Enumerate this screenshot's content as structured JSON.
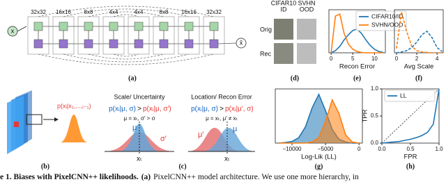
{
  "diagram_a": {
    "input": "x",
    "output": "x̂",
    "levels": [
      "32x32",
      "16x16",
      "8x8",
      "4x4",
      "4x4",
      "8x8",
      "16x16",
      "32x32"
    ],
    "label": "(a)"
  },
  "panel_d": {
    "columns": [
      [
        "CIFAR10",
        "ID"
      ],
      [
        "SVHN",
        "OOD"
      ]
    ],
    "rows": [
      "Orig",
      "Rec"
    ],
    "label": "(d)"
  },
  "panel_b": {
    "formula": "p(xᵢ|x₁,...,ᵢ₋₁)",
    "label": "(b)"
  },
  "panel_c": {
    "left": {
      "title": "Scale/ Uncertainty",
      "inequality": [
        "p(xᵢ|μ, σ)",
        ">",
        "p(xᵢ|μ, σ′)"
      ],
      "condition": "μ = xₜ, σ′ > σ",
      "curve_labels": [
        "μ",
        "σ′"
      ],
      "axis_label": "xₜ"
    },
    "right": {
      "title": "Location/ Recon Error",
      "inequality": [
        "p(xᵢ|μ, σ)",
        ">",
        "p(xᵢ|μ′, σ)"
      ],
      "condition": "μ = xₜ, μ′ ≠ xₜ",
      "curve_labels": [
        "μ′",
        "μ"
      ],
      "axis_label": "xₜ"
    },
    "label": "(c)"
  },
  "chart_data": [
    {
      "type": "line",
      "label": "(e)",
      "xlabel": "Recon Error",
      "x": [
        0,
        1,
        2,
        3,
        4,
        5,
        6,
        7,
        8,
        9,
        10,
        11,
        12
      ],
      "series": [
        {
          "name": "CIFAR10/ID",
          "color": "#1f77b4",
          "linestyle": "solid",
          "values": [
            0,
            0.05,
            0.15,
            0.3,
            0.42,
            0.52,
            0.55,
            0.45,
            0.3,
            0.17,
            0.08,
            0.03,
            0.01
          ]
        },
        {
          "name": "SVHN/OOD",
          "color": "#ff7f0e",
          "linestyle": "solid",
          "values": [
            0,
            0.85,
            0.9,
            0.45,
            0.2,
            0.08,
            0.03,
            0.01,
            0,
            0,
            0,
            0,
            0
          ]
        }
      ],
      "xlim": [
        -0.5,
        12.5
      ],
      "xticks": [
        0,
        5,
        10
      ],
      "ylim": [
        0,
        1
      ],
      "legend": "upper right"
    },
    {
      "type": "line",
      "label": "(f)",
      "xlabel": "Avg Scale",
      "x": [
        0,
        0.5,
        1,
        1.5,
        2,
        2.5,
        3,
        3.5,
        4,
        4.5
      ],
      "series": [
        {
          "color": "#1f77b4",
          "linestyle": "dashed",
          "values": [
            0,
            0.02,
            0.05,
            0.12,
            0.25,
            0.42,
            0.5,
            0.35,
            0.12,
            0.03
          ]
        },
        {
          "color": "#ff7f0e",
          "linestyle": "dashed",
          "values": [
            0.1,
            0.95,
            0.5,
            0.15,
            0.05,
            0.02,
            0.01,
            0,
            0,
            0
          ]
        }
      ],
      "xlim": [
        -0.2,
        4.6
      ],
      "xticks": [
        0,
        2,
        4
      ],
      "ylim": [
        0,
        1
      ]
    },
    {
      "type": "area",
      "label": "(g)",
      "xlabel": "Log-Lik (LL)",
      "x": [
        -12000,
        -11000,
        -10000,
        -9000,
        -8000,
        -7000,
        -6000,
        -5000,
        -4000,
        -3000,
        -2000,
        -1000,
        0
      ],
      "series": [
        {
          "color": "#1f77b4",
          "linestyle": "solid",
          "values": [
            0,
            0.01,
            0.03,
            0.1,
            0.3,
            0.65,
            0.9,
            0.6,
            0.25,
            0.07,
            0.02,
            0,
            0
          ]
        },
        {
          "color": "#ff7f0e",
          "linestyle": "solid",
          "values": [
            0,
            0,
            0,
            0,
            0,
            0.02,
            0.1,
            0.4,
            0.8,
            0.55,
            0.15,
            0.02,
            0
          ]
        }
      ],
      "xlim": [
        -12500,
        500
      ],
      "xticks": [
        {
          "value": -10000,
          "label": "−10000"
        },
        {
          "value": -5000,
          "label": "−5000"
        },
        0
      ],
      "ylim": [
        0,
        1
      ]
    },
    {
      "type": "line",
      "label": "(h)",
      "xlabel": "FPR",
      "ylabel": "TPR",
      "x": [
        0,
        0.1,
        0.2,
        0.3,
        0.4,
        0.5,
        0.6,
        0.7,
        0.8,
        0.9,
        1.0
      ],
      "series": [
        {
          "name": "LL",
          "color": "#1f77b4",
          "linestyle": "solid",
          "values": [
            0,
            0.01,
            0.02,
            0.03,
            0.05,
            0.07,
            0.1,
            0.14,
            0.2,
            0.35,
            1.0
          ]
        }
      ],
      "xlim": [
        0,
        1
      ],
      "ylim": [
        0,
        1
      ],
      "xticks": [
        {
          "value": 0,
          "label": "0.0"
        },
        {
          "value": 0.5,
          "label": "0.5"
        },
        {
          "value": 1,
          "label": "1.0"
        }
      ],
      "yticks": [
        {
          "value": 0,
          "label": "0.0"
        },
        {
          "value": 0.5,
          "label": "0.5"
        },
        {
          "value": 1,
          "label": "1.0"
        }
      ],
      "legend": "upper left"
    }
  ],
  "caption": [
    "e 1. Biases with PixelCNN++ likelihoods.",
    "(a)",
    "PixelCNN++ model architecture. We use one more hierarchy, in"
  ]
}
